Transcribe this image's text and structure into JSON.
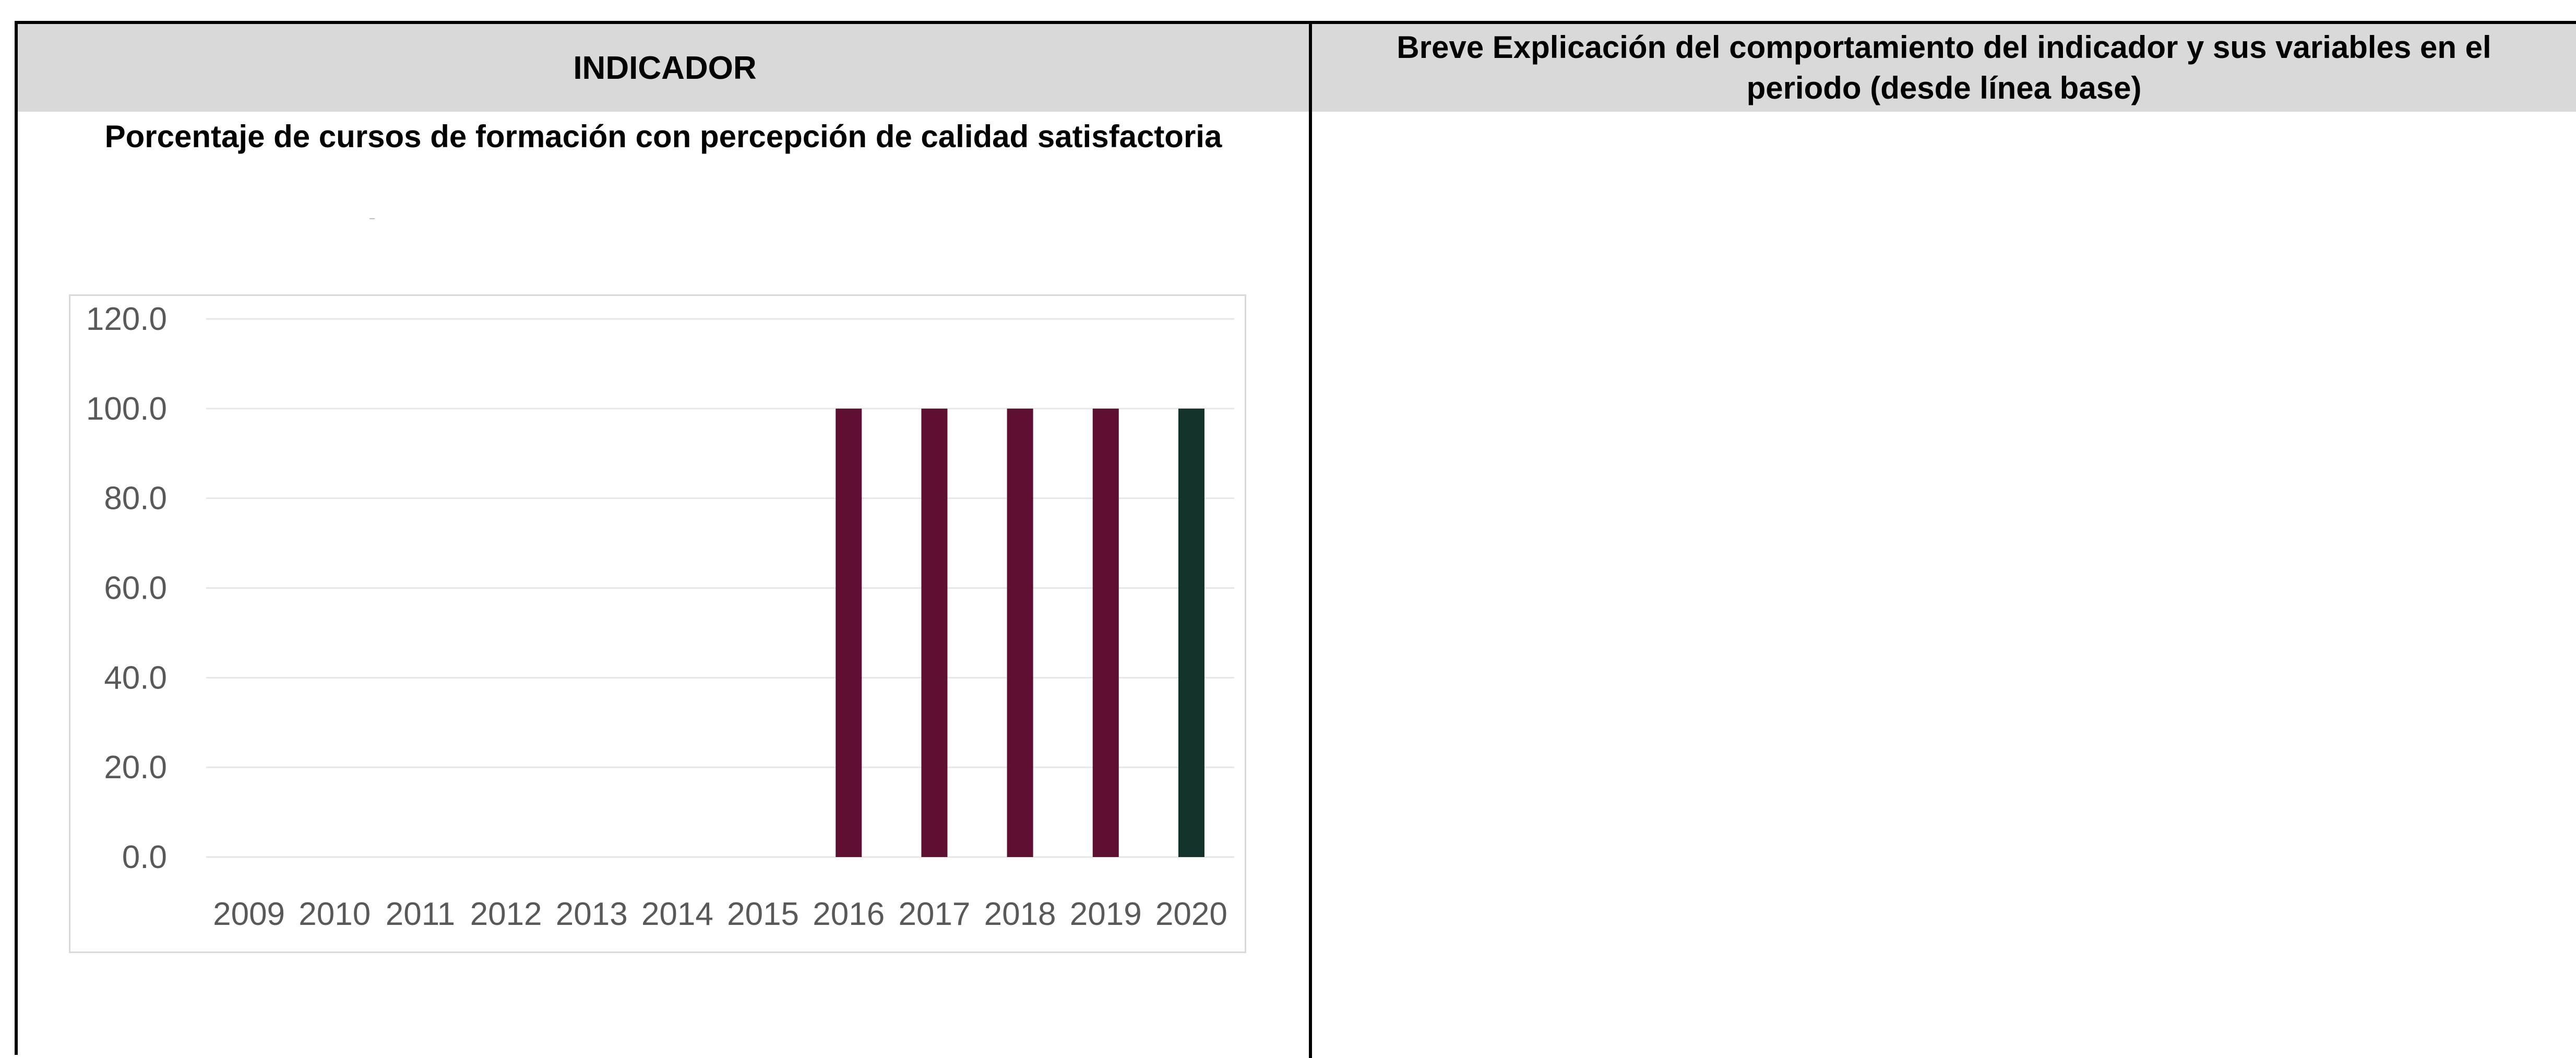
{
  "table": {
    "header_indicator": "INDICADOR",
    "header_explanation_line1": "Breve Explicación del comportamiento del indicador y sus variables en el",
    "header_explanation_line2": "periodo (desde línea base)",
    "indicator_name": "Porcentaje de cursos de formación con percepción de calidad satisfactoria"
  },
  "colors": {
    "bar_default": "#5f1032",
    "bar_highlight": "#13322b",
    "header_bg": "#d9d9d9"
  },
  "chart_data": {
    "type": "bar",
    "title": "",
    "xlabel": "",
    "ylabel": "",
    "categories": [
      "2009",
      "2010",
      "2011",
      "2012",
      "2013",
      "2014",
      "2015",
      "2016",
      "2017",
      "2018",
      "2019",
      "2020"
    ],
    "values": [
      null,
      null,
      null,
      null,
      null,
      null,
      null,
      100.0,
      100.0,
      100.0,
      100.0,
      100.0
    ],
    "highlight_category": "2020",
    "ylim": [
      0,
      120
    ],
    "yticks": [
      "0.0",
      "20.0",
      "40.0",
      "60.0",
      "80.0",
      "100.0",
      "120.0"
    ],
    "grid": true,
    "legend": "none"
  }
}
